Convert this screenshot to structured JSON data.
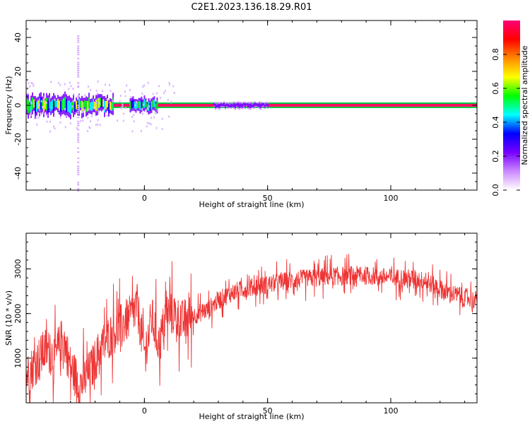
{
  "title": "C2E1.2023.136.18.29.R01",
  "chart_data": [
    {
      "type": "heatmap",
      "xlabel": "Height of straight line (km)",
      "ylabel": "Frequency (Hz)",
      "xlim": [
        -48,
        135
      ],
      "ylim": [
        -50,
        50
      ],
      "xticks": [
        0,
        50,
        100
      ],
      "yticks": [
        -40,
        -20,
        0,
        20,
        40
      ],
      "grid": false,
      "colorbar": {
        "label": "Normalized spectral amplitude",
        "range": [
          0,
          1
        ],
        "ticks": [
          "0.0",
          "0.2",
          "0.4",
          "0.6",
          "0.8"
        ],
        "colors": [
          "#ffffff",
          "#cc88ff",
          "#7700ff",
          "#0000ff",
          "#00ffff",
          "#00ff00",
          "#ffff00",
          "#ff8800",
          "#ff0000",
          "#ff0077"
        ]
      },
      "ridge": {
        "frequency": 0,
        "x_range": [
          -48,
          135
        ],
        "peak_color": "#ff1060",
        "band_color": "#00cc44"
      },
      "spread_regions": [
        {
          "x_range": [
            -48,
            -13
          ],
          "freq_halfwidth": 6,
          "level": "high"
        },
        {
          "x_range": [
            -6,
            5
          ],
          "freq_halfwidth": 4,
          "level": "medium"
        },
        {
          "x_range": [
            28,
            50
          ],
          "freq_halfwidth": 2,
          "level": "low"
        }
      ],
      "vertical_streak": {
        "x": -27,
        "freq_range": [
          -50,
          42
        ],
        "level": "faint"
      }
    },
    {
      "type": "line",
      "xlabel": "Height of straight line (km)",
      "ylabel": "SNR (10 * v/v)",
      "xlim": [
        -48,
        135
      ],
      "ylim": [
        0,
        3800
      ],
      "xticks": [
        0,
        50,
        100
      ],
      "yticks": [
        1000,
        2000,
        3000
      ],
      "grid": false,
      "series": [
        {
          "color": "#ee3333",
          "x": [
            -48,
            -44,
            -40,
            -36,
            -33,
            -30,
            -26,
            -22,
            -18,
            -14,
            -10,
            -6,
            -3,
            0,
            3,
            6,
            9,
            12,
            15,
            18,
            22,
            26,
            30,
            35,
            40,
            45,
            50,
            55,
            60,
            65,
            70,
            75,
            80,
            85,
            90,
            95,
            100,
            105,
            110,
            115,
            120,
            125,
            130,
            135
          ],
          "y": [
            600,
            900,
            1200,
            1000,
            1500,
            800,
            400,
            700,
            1200,
            1500,
            1700,
            1900,
            2200,
            1100,
            1900,
            1300,
            2000,
            2000,
            1800,
            1900,
            2000,
            2100,
            2300,
            2450,
            2550,
            2600,
            2650,
            2700,
            2750,
            2780,
            2800,
            2830,
            2850,
            2860,
            2850,
            2830,
            2800,
            2800,
            2780,
            2700,
            2550,
            2450,
            2350,
            2300
          ],
          "noise_amplitude": 350
        }
      ]
    }
  ]
}
